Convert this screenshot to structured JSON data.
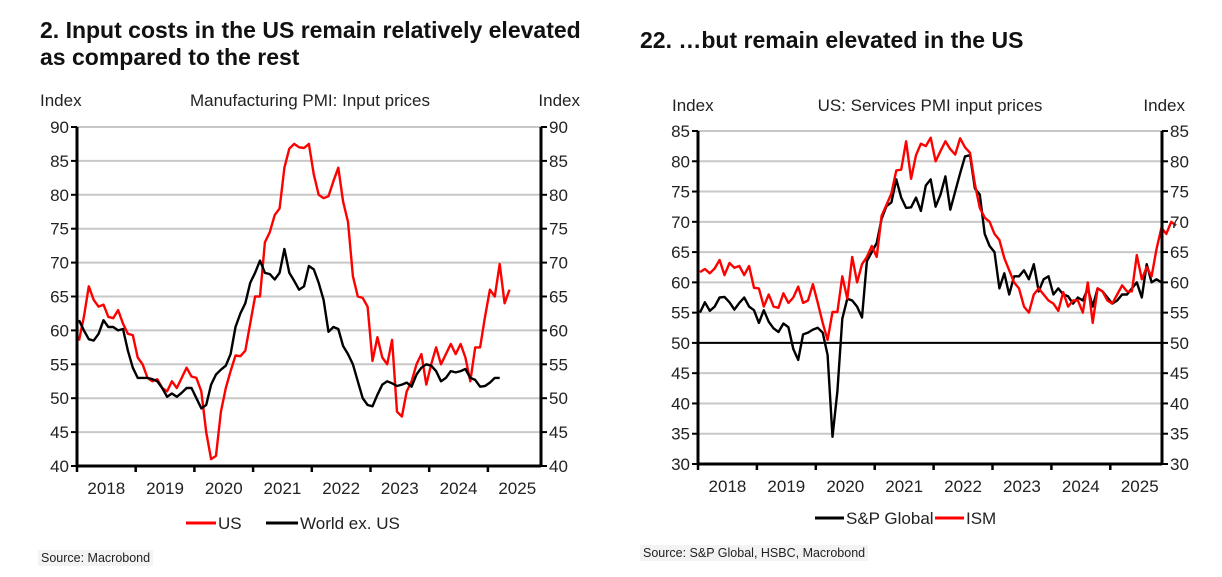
{
  "panels": [
    {
      "title": "2. Input costs in the US remain relatively elevated as compared to the rest",
      "source": "Source: Macrobond"
    },
    {
      "title": "22. …but remain elevated in the US",
      "source": "Source: S&P Global, HSBC, Macrobond"
    }
  ],
  "colors": {
    "red": "#ff0000",
    "black": "#000000",
    "grid": "#c8c8c8"
  },
  "chart_data": [
    {
      "type": "line",
      "title": "Manufacturing PMI: Input prices",
      "ylabel_left": "Index",
      "ylabel_right": "Index",
      "ylim": [
        40,
        90
      ],
      "yticks": [
        40,
        45,
        50,
        55,
        60,
        65,
        70,
        75,
        80,
        85,
        90
      ],
      "x_start": "2018-01",
      "x_frequency": "monthly",
      "xticks": [
        "2018",
        "2019",
        "2020",
        "2021",
        "2022",
        "2023",
        "2024",
        "2025"
      ],
      "grid": true,
      "legend_position": "bottom",
      "series": [
        {
          "name": "US",
          "color": "#ff0000",
          "values": [
            58.5,
            62,
            66.5,
            64.5,
            63.5,
            63.8,
            62,
            61.8,
            63,
            61,
            59.5,
            59.3,
            56,
            55,
            53,
            52.5,
            52.8,
            51.5,
            51,
            52.5,
            51.5,
            53,
            54.5,
            53.2,
            53,
            51,
            45,
            41,
            41.5,
            48,
            51.5,
            54,
            56.3,
            56.2,
            57,
            61,
            65,
            65,
            73,
            74.5,
            77,
            78,
            84,
            86.8,
            87.5,
            87,
            86.9,
            87.5,
            83,
            80,
            79.5,
            79.8,
            82,
            84,
            79,
            76,
            68,
            65,
            64.8,
            63.5,
            55.5,
            59,
            56,
            55,
            58.6,
            48,
            47.3,
            51,
            52.5,
            55,
            56.5,
            52,
            55,
            57.5,
            55,
            56.5,
            58,
            56.5,
            58,
            56,
            52.5,
            57.5,
            57.5,
            62,
            66,
            65,
            69.8,
            64,
            66
          ]
        },
        {
          "name": "World ex. US",
          "color": "#000000",
          "values": [
            61.5,
            60,
            58.7,
            58.5,
            59.5,
            61.5,
            60.5,
            60.5,
            60,
            60.2,
            57,
            54.5,
            53,
            53,
            53,
            52.8,
            52.5,
            51.5,
            50.2,
            50.7,
            50.2,
            50.8,
            51.5,
            51.5,
            50,
            48.5,
            49,
            52,
            53.5,
            54.2,
            54.8,
            56.5,
            60.5,
            62.5,
            64,
            67,
            68.5,
            70.3,
            68.5,
            68.3,
            67.5,
            68.5,
            72,
            68.5,
            67.3,
            66,
            66.5,
            69.5,
            69,
            67,
            64.5,
            59.8,
            60.5,
            60.2,
            57.7,
            56.5,
            55,
            52.5,
            50,
            49,
            48.8,
            50.5,
            52,
            52.5,
            52.2,
            51.8,
            52,
            52.3,
            51.7,
            53.5,
            54.5,
            55,
            54.8,
            54,
            52.5,
            53,
            54,
            53.8,
            54,
            54.3,
            53,
            52.7,
            51.7,
            51.8,
            52.3,
            53,
            53
          ]
        }
      ]
    },
    {
      "type": "line",
      "title": "US: Services PMI input prices",
      "ylabel_left": "Index",
      "ylabel_right": "Index",
      "ylim": [
        30,
        85
      ],
      "yticks": [
        30,
        35,
        40,
        45,
        50,
        55,
        60,
        65,
        70,
        75,
        80,
        85
      ],
      "reference_line": 50,
      "x_start": "2018-01",
      "x_frequency": "monthly",
      "xticks": [
        "2018",
        "2019",
        "2020",
        "2021",
        "2022",
        "2023",
        "2024",
        "2025"
      ],
      "grid": true,
      "legend_position": "bottom",
      "series": [
        {
          "name": "S&P Global",
          "color": "#000000",
          "values": [
            55,
            56.7,
            55.3,
            56,
            57.5,
            57.6,
            56.7,
            55.5,
            56.6,
            57.5,
            56,
            55.4,
            53.3,
            55.4,
            53.5,
            52.4,
            51.8,
            53.2,
            52.6,
            49,
            47.2,
            51.4,
            51.7,
            52.2,
            52.5,
            51.7,
            48,
            34.5,
            42,
            54,
            57.3,
            57,
            56,
            54.2,
            63.5,
            65,
            66.5,
            70.5,
            72.6,
            73.2,
            77,
            74,
            72.3,
            72.4,
            74,
            71.8,
            76,
            77,
            72.5,
            74.5,
            77.5,
            72,
            75,
            78,
            80.8,
            81,
            75.5,
            74.5,
            68,
            66,
            65,
            59,
            61.5,
            58,
            61,
            61,
            62,
            60.5,
            63,
            58.5,
            60.5,
            61,
            58,
            59,
            58,
            57.7,
            56.5,
            57.5,
            57,
            59,
            56,
            59,
            58.5,
            57.5,
            56.5,
            57,
            58,
            58,
            59,
            60,
            57.5,
            63,
            60,
            60.5,
            60
          ]
        },
        {
          "name": "ISM",
          "color": "#ff0000",
          "values": [
            61.7,
            62.2,
            61.5,
            62.3,
            63.7,
            61.2,
            63.2,
            62.4,
            62.7,
            61.2,
            62.7,
            59.1,
            59,
            56,
            58,
            56,
            55.8,
            58.2,
            56.6,
            57.5,
            59.3,
            56.6,
            57,
            59.7,
            56.6,
            53.3,
            50.5,
            55.1,
            55.1,
            61,
            57.3,
            64.2,
            60,
            63,
            64.2,
            66,
            64.2,
            71,
            72.8,
            74.7,
            78.5,
            78.6,
            83.3,
            77.1,
            81,
            82.9,
            82.5,
            83.9,
            80,
            81.7,
            83.3,
            82,
            81.1,
            83.8,
            82.3,
            81.4,
            76.2,
            72.3,
            70.7,
            70,
            68,
            67,
            64,
            62,
            60,
            59,
            56,
            55,
            58,
            59,
            58,
            57,
            56.5,
            55.3,
            58.4,
            56,
            57,
            57,
            55,
            60,
            53.3,
            59,
            58.5,
            57,
            56.5,
            58,
            59.5,
            58.5,
            58.5,
            64.5,
            60.5,
            62.5,
            61,
            65.5,
            69,
            68,
            70,
            69.4
          ]
        }
      ]
    }
  ]
}
